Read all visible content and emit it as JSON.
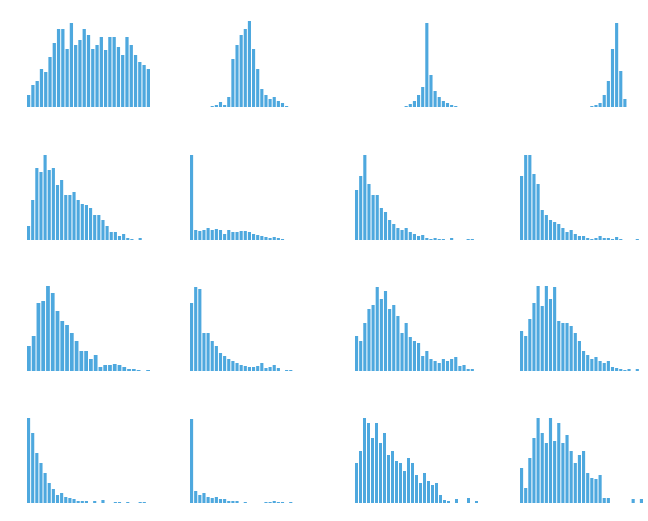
{
  "chart_data": [
    {
      "type": "bar",
      "color": "#4ea8de",
      "values": [
        12,
        22,
        26,
        38,
        35,
        50,
        64,
        78,
        78,
        58,
        84,
        62,
        67,
        78,
        72,
        58,
        62,
        70,
        57,
        70,
        70,
        60,
        52,
        70,
        62,
        52,
        45,
        42,
        38
      ]
    },
    {
      "type": "bar",
      "color": "#4ea8de",
      "values": [
        0,
        0,
        0,
        0,
        0,
        1,
        2,
        5,
        2,
        10,
        48,
        62,
        72,
        78,
        86,
        58,
        38,
        18,
        12,
        8,
        10,
        6,
        4,
        1,
        0,
        0,
        0,
        0,
        0,
        0
      ]
    },
    {
      "type": "bar",
      "color": "#4ea8de",
      "values": [
        0,
        0,
        0,
        0,
        0,
        0,
        0,
        0,
        0,
        0,
        0,
        0,
        1,
        3,
        6,
        12,
        20,
        84,
        32,
        16,
        10,
        6,
        4,
        2,
        1,
        0,
        0,
        0,
        0,
        0
      ]
    },
    {
      "type": "bar",
      "color": "#4ea8de",
      "values": [
        0,
        0,
        0,
        0,
        0,
        0,
        0,
        0,
        0,
        0,
        0,
        0,
        0,
        0,
        0,
        0,
        0,
        1,
        2,
        4,
        12,
        26,
        58,
        84,
        36,
        8,
        0,
        0,
        0,
        0
      ]
    },
    {
      "type": "bar",
      "color": "#4ea8de",
      "values": [
        14,
        40,
        72,
        68,
        85,
        70,
        72,
        55,
        60,
        45,
        45,
        48,
        40,
        36,
        35,
        32,
        25,
        25,
        20,
        14,
        8,
        8,
        4,
        6,
        2,
        1,
        0,
        2,
        0,
        0
      ]
    },
    {
      "type": "bar",
      "color": "#4ea8de",
      "values": [
        85,
        10,
        9,
        10,
        12,
        10,
        11,
        10,
        6,
        10,
        8,
        8,
        9,
        9,
        8,
        6,
        5,
        4,
        3,
        2,
        3,
        2,
        1,
        0,
        0,
        0,
        0,
        0,
        0,
        0
      ]
    },
    {
      "type": "bar",
      "color": "#4ea8de",
      "values": [
        50,
        64,
        85,
        56,
        45,
        45,
        32,
        28,
        20,
        16,
        12,
        10,
        12,
        8,
        6,
        4,
        5,
        2,
        1,
        2,
        1,
        1,
        0,
        2,
        0,
        0,
        0,
        1,
        1,
        0
      ]
    },
    {
      "type": "bar",
      "color": "#4ea8de",
      "values": [
        64,
        85,
        85,
        66,
        56,
        30,
        25,
        20,
        18,
        16,
        12,
        8,
        10,
        6,
        4,
        4,
        2,
        1,
        2,
        4,
        2,
        2,
        1,
        3,
        1,
        0,
        0,
        0,
        1,
        0
      ]
    },
    {
      "type": "bar",
      "color": "#4ea8de",
      "values": [
        25,
        35,
        68,
        70,
        85,
        78,
        60,
        50,
        46,
        38,
        30,
        20,
        20,
        12,
        16,
        4,
        6,
        6,
        7,
        6,
        4,
        2,
        2,
        1,
        0,
        1
      ]
    },
    {
      "type": "bar",
      "color": "#4ea8de",
      "values": [
        68,
        84,
        82,
        38,
        38,
        30,
        25,
        18,
        15,
        12,
        10,
        8,
        6,
        5,
        4,
        4,
        5,
        8,
        3,
        4,
        6,
        3,
        0,
        1,
        1,
        0,
        0,
        0,
        0,
        0
      ]
    },
    {
      "type": "bar",
      "color": "#4ea8de",
      "values": [
        35,
        30,
        48,
        62,
        66,
        84,
        72,
        80,
        62,
        66,
        55,
        38,
        48,
        34,
        30,
        28,
        15,
        20,
        12,
        10,
        8,
        12,
        10,
        12,
        14,
        5,
        6,
        2,
        2,
        0
      ]
    },
    {
      "type": "bar",
      "color": "#4ea8de",
      "values": [
        40,
        35,
        52,
        68,
        85,
        65,
        85,
        72,
        84,
        50,
        48,
        48,
        45,
        38,
        30,
        20,
        16,
        12,
        14,
        10,
        8,
        10,
        4,
        3,
        2,
        1,
        2,
        0,
        2,
        0
      ]
    },
    {
      "type": "bar",
      "color": "#4ea8de",
      "values": [
        85,
        70,
        50,
        40,
        30,
        20,
        14,
        8,
        10,
        6,
        5,
        4,
        2,
        2,
        2,
        0,
        2,
        0,
        3,
        0,
        0,
        1,
        1,
        0,
        1,
        0,
        0,
        1,
        1,
        0
      ]
    },
    {
      "type": "bar",
      "color": "#4ea8de",
      "values": [
        84,
        12,
        8,
        10,
        6,
        5,
        6,
        4,
        4,
        2,
        2,
        2,
        0,
        1,
        0,
        0,
        0,
        0,
        1,
        1,
        2,
        1,
        1,
        0,
        1,
        0,
        0,
        0,
        0,
        0
      ]
    },
    {
      "type": "bar",
      "color": "#4ea8de",
      "values": [
        40,
        52,
        85,
        80,
        65,
        80,
        60,
        70,
        48,
        52,
        42,
        40,
        32,
        45,
        40,
        28,
        20,
        30,
        22,
        18,
        20,
        8,
        3,
        2,
        0,
        4,
        0,
        0,
        5,
        0,
        2
      ]
    },
    {
      "type": "bar",
      "color": "#4ea8de",
      "values": [
        35,
        15,
        45,
        65,
        85,
        70,
        60,
        85,
        62,
        80,
        60,
        68,
        52,
        40,
        48,
        52,
        30,
        25,
        24,
        28,
        5,
        5,
        0,
        0,
        0,
        0,
        0,
        4,
        0,
        4
      ]
    }
  ]
}
